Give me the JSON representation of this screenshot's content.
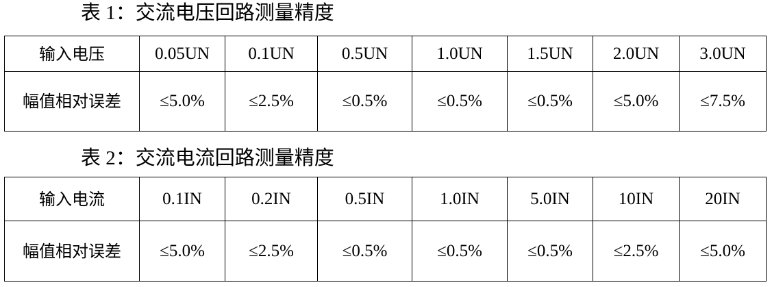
{
  "tables": [
    {
      "title": "表 1：交流电压回路测量精度",
      "header_label": "输入电压",
      "headers": [
        "0.05UN",
        "0.1UN",
        "0.5UN",
        "1.0UN",
        "1.5UN",
        "2.0UN",
        "3.0UN"
      ],
      "row_label": "幅值相对误差",
      "values": [
        "≤5.0%",
        "≤2.5%",
        "≤0.5%",
        "≤0.5%",
        "≤0.5%",
        "≤5.0%",
        "≤7.5%"
      ]
    },
    {
      "title": "表 2：交流电流回路测量精度",
      "header_label": "输入电流",
      "headers": [
        "0.1IN",
        "0.2IN",
        "0.5IN",
        "1.0IN",
        "5.0IN",
        "10IN",
        "20IN"
      ],
      "row_label": "幅值相对误差",
      "values": [
        "≤5.0%",
        "≤2.5%",
        "≤0.5%",
        "≤0.5%",
        "≤0.5%",
        "≤2.5%",
        "≤5.0%"
      ]
    }
  ]
}
